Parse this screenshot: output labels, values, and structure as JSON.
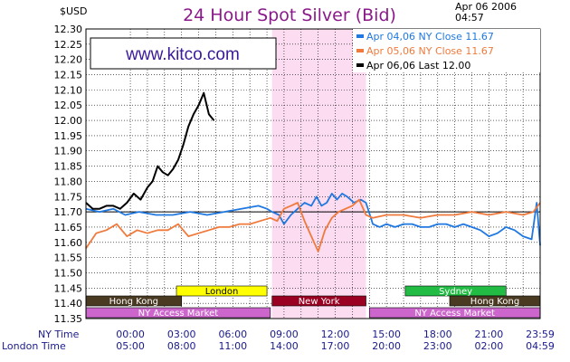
{
  "header": {
    "unit": "$USD",
    "title": "24 Hour Spot Silver (Bid)",
    "date": "Apr 06 2006",
    "time": "04:57"
  },
  "watermark": "www.kitco.com",
  "colors": {
    "plot_bg": "#ffffff",
    "newyork_shade": "#fbdcf0",
    "grid": "#000000",
    "apr04": "#1f78e0",
    "apr05": "#f07a3c",
    "apr06": "#000000",
    "title": "#8a1a8a",
    "watermark": "#3a1a9a"
  },
  "markets": [
    {
      "name": "London",
      "start": 2.7,
      "end": 8.0,
      "color": "#ffff00",
      "text": "#000000",
      "row": 0
    },
    {
      "name": "Sydney",
      "start": 16.1,
      "end": 22.0,
      "color": "#22bb44",
      "text": "#ffffff",
      "row": 0
    },
    {
      "name": "Hong Kong",
      "start": -2.6,
      "end": 3.0,
      "color": "#4a3a22",
      "text": "#ffffff",
      "row": 1
    },
    {
      "name": "New York",
      "start": 8.3,
      "end": 13.8,
      "color": "#990022",
      "text": "#ffffff",
      "row": 1
    },
    {
      "name": "Hong Kong",
      "start": 18.7,
      "end": 24.0,
      "color": "#4a3a22",
      "text": "#ffffff",
      "row": 1
    },
    {
      "name": "NY Access Market",
      "start": -2.6,
      "end": 8.2,
      "color": "#cc66cc",
      "text": "#ffffff",
      "row": 2
    },
    {
      "name": "NY Access Market",
      "start": 14.0,
      "end": 24.0,
      "color": "#cc66cc",
      "text": "#ffffff",
      "row": 2
    }
  ],
  "chart_data": {
    "type": "line",
    "title": "24 Hour Spot Silver (Bid)",
    "ylabel": "$USD",
    "ylim": [
      11.35,
      12.3
    ],
    "y_ticks": [
      "11.35",
      "11.40",
      "11.45",
      "11.50",
      "11.55",
      "11.60",
      "11.65",
      "11.70",
      "11.75",
      "11.80",
      "11.85",
      "11.90",
      "11.95",
      "12.00",
      "12.05",
      "12.10",
      "12.15",
      "12.20",
      "12.25",
      "12.30"
    ],
    "xlim": [
      -2.6,
      24.0
    ],
    "x_axis_rows": [
      {
        "label": "NY Time",
        "ticks": [
          "00:00",
          "03:00",
          "06:00",
          "09:00",
          "12:00",
          "15:00",
          "18:00",
          "21:00",
          "23:59"
        ]
      },
      {
        "label": "London Time",
        "ticks": [
          "05:00",
          "08:00",
          "11:00",
          "14:00",
          "17:00",
          "20:00",
          "23:00",
          "02:00",
          "04:59"
        ]
      }
    ],
    "x_tick_positions": [
      0,
      3,
      6,
      9,
      12,
      15,
      18,
      21,
      24
    ],
    "newyork_shading": [
      8.3,
      13.8
    ],
    "reference_line": 11.7,
    "legend_position": "top-right",
    "series": [
      {
        "name": "Apr 04,06  NY Close  11.67",
        "color_key": "apr04",
        "x": [
          -2.6,
          -1.8,
          -1.0,
          -0.3,
          0.5,
          1.5,
          2.5,
          3.5,
          4.5,
          5.5,
          6.5,
          7.5,
          8.0,
          8.3,
          8.7,
          9.0,
          9.4,
          9.8,
          10.2,
          10.6,
          10.9,
          11.2,
          11.5,
          11.8,
          12.1,
          12.4,
          12.7,
          13.1,
          13.5,
          13.8,
          14.2,
          14.6,
          15.0,
          15.5,
          16.0,
          16.5,
          17.0,
          17.5,
          18.0,
          18.5,
          19.0,
          19.5,
          20.0,
          20.5,
          21.0,
          21.5,
          22.0,
          22.5,
          23.0,
          23.5,
          23.8,
          24.0
        ],
        "y": [
          11.71,
          11.7,
          11.71,
          11.69,
          11.7,
          11.69,
          11.69,
          11.7,
          11.69,
          11.7,
          11.71,
          11.72,
          11.71,
          11.7,
          11.69,
          11.66,
          11.69,
          11.71,
          11.73,
          11.72,
          11.75,
          11.72,
          11.73,
          11.76,
          11.74,
          11.76,
          11.75,
          11.73,
          11.74,
          11.73,
          11.66,
          11.65,
          11.66,
          11.65,
          11.66,
          11.66,
          11.65,
          11.65,
          11.66,
          11.66,
          11.65,
          11.66,
          11.65,
          11.64,
          11.62,
          11.63,
          11.65,
          11.64,
          11.62,
          11.61,
          11.73,
          11.59
        ]
      },
      {
        "name": "Apr 05,06  NY Close  11.67",
        "color_key": "apr05",
        "x": [
          -2.6,
          -2.0,
          -1.4,
          -0.8,
          -0.2,
          0.4,
          1.0,
          1.6,
          2.2,
          2.8,
          3.4,
          4.0,
          4.6,
          5.2,
          5.8,
          6.4,
          7.0,
          7.6,
          8.2,
          8.6,
          9.0,
          9.4,
          9.8,
          10.2,
          10.6,
          11.0,
          11.4,
          11.8,
          12.2,
          12.6,
          13.0,
          13.4,
          13.8,
          14.2,
          15.0,
          16.0,
          17.0,
          18.0,
          19.0,
          20.0,
          21.0,
          22.0,
          23.0,
          23.6,
          24.0
        ],
        "y": [
          11.58,
          11.63,
          11.64,
          11.66,
          11.62,
          11.64,
          11.63,
          11.64,
          11.64,
          11.66,
          11.62,
          11.63,
          11.64,
          11.65,
          11.65,
          11.66,
          11.66,
          11.67,
          11.68,
          11.67,
          11.71,
          11.72,
          11.73,
          11.67,
          11.62,
          11.57,
          11.64,
          11.68,
          11.7,
          11.71,
          11.72,
          11.74,
          11.69,
          11.68,
          11.69,
          11.69,
          11.68,
          11.69,
          11.69,
          11.7,
          11.69,
          11.7,
          11.69,
          11.7,
          11.73
        ]
      },
      {
        "name": "Apr 06,06  Last  12.00",
        "color_key": "apr06",
        "x": [
          -2.6,
          -2.2,
          -1.8,
          -1.4,
          -1.0,
          -0.6,
          -0.2,
          0.2,
          0.6,
          1.0,
          1.3,
          1.6,
          1.9,
          2.2,
          2.5,
          2.8,
          3.1,
          3.4,
          3.7,
          4.0,
          4.3,
          4.6,
          4.9
        ],
        "y": [
          11.73,
          11.71,
          11.71,
          11.72,
          11.72,
          11.71,
          11.73,
          11.76,
          11.74,
          11.78,
          11.8,
          11.85,
          11.83,
          11.82,
          11.84,
          11.87,
          11.92,
          11.98,
          12.02,
          12.05,
          12.09,
          12.02,
          12.0
        ]
      }
    ]
  }
}
